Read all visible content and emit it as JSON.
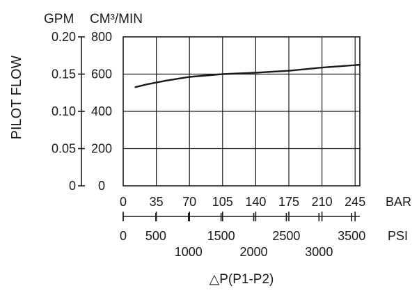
{
  "chart_data": {
    "type": "line",
    "ylabel": "PILOT FLOW",
    "y_units_left": "GPM",
    "y_units_right": "CM³/MIN",
    "xlabel": "△P(P1-P2)",
    "x_unit_bar": "BAR",
    "x_unit_psi": "PSI",
    "grid": true,
    "xlim": [
      0,
      250
    ],
    "ylim_cm3": [
      0,
      800
    ],
    "ylim_gpm": [
      0,
      0.2
    ],
    "x_ticks_bar": [
      "0",
      "35",
      "70",
      "105",
      "140",
      "175",
      "210",
      "245"
    ],
    "y_ticks_gpm": [
      "0",
      "0.05",
      "0.10",
      "0.15",
      "0.20"
    ],
    "y_ticks_cm3": [
      "0",
      "200",
      "400",
      "600",
      "800"
    ],
    "psi_ticks_top": [
      "0",
      "500",
      "1500",
      "2500",
      "3500"
    ],
    "psi_ticks_bottom": [
      "1000",
      "2000",
      "3000"
    ],
    "series": [
      {
        "x": [
          13,
          25,
          45,
          70,
          105,
          140,
          175,
          210,
          250
        ],
        "values": [
          530,
          545,
          565,
          585,
          600,
          608,
          618,
          635,
          650
        ]
      }
    ]
  }
}
